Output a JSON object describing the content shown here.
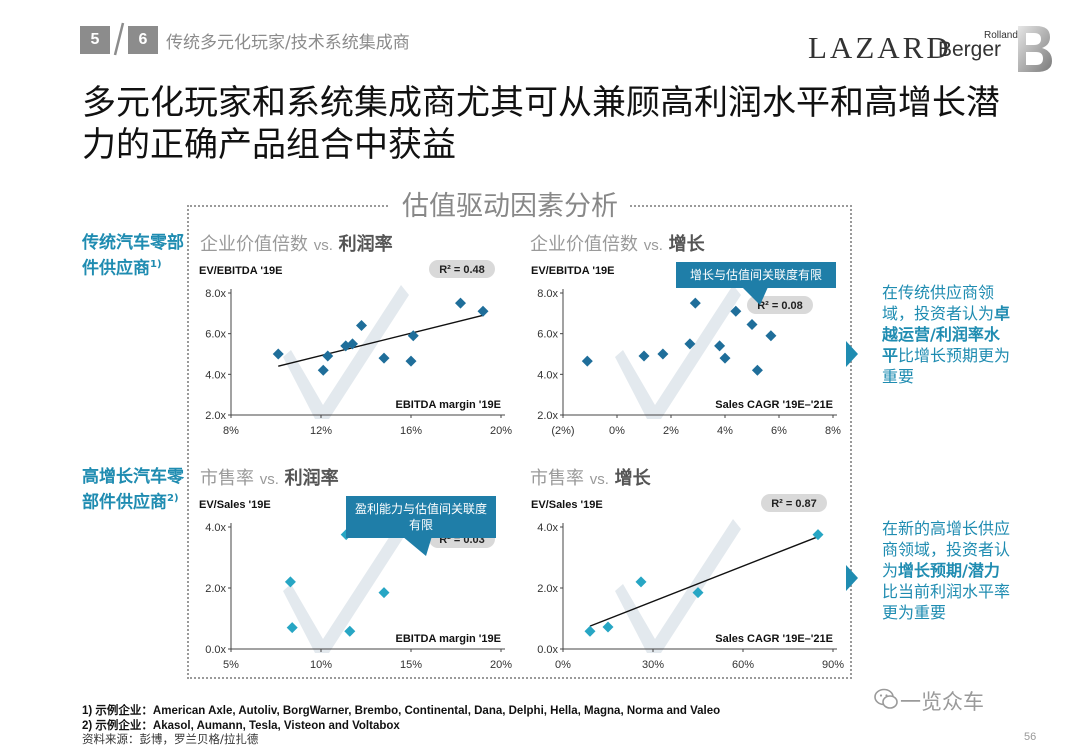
{
  "header": {
    "nav_prev": "5",
    "nav_current": "6",
    "section_title": "传统多元化玩家/技术系统集成商",
    "logo_lazard": "LAZARD",
    "logo_rolland": "Rolland",
    "logo_berger": "Berger"
  },
  "main_title": "多元化玩家和系统集成商尤其可从兼顾高利润水平和高增长潜力的正确产品组合中获益",
  "analysis_title": "估值驱动因素分析",
  "side_labels": {
    "top": "传统汽车零部件供应商",
    "top_sup": "1)",
    "bottom": "高增长汽车零部件供应商",
    "bottom_sup": "2)"
  },
  "panels": {
    "tl": {
      "title_a": "企业价值倍数",
      "vs": "vs.",
      "title_b": "利润率"
    },
    "tr": {
      "title_a": "企业价值倍数",
      "vs": "vs.",
      "title_b": "增长"
    },
    "bl": {
      "title_a": "市售率",
      "vs": "vs.",
      "title_b": "利润率"
    },
    "br": {
      "title_a": "市售率",
      "vs": "vs.",
      "title_b": "增长"
    }
  },
  "callouts": {
    "tr": "增长与估值间关联度有限",
    "bl_line1": "盈利能力与估值间关联度",
    "bl_line2": "有限"
  },
  "right_text": {
    "top_a": "在传统供应商领域，投资者认为",
    "top_b": "卓越运营/利润率水平",
    "top_c": "比增长预期更为重要",
    "bottom_a": "在新的高增长供应商领域，投资者认为",
    "bottom_b": "增长预期/潜力",
    "bottom_c": "比当前利润水平率更为重要"
  },
  "footnotes": {
    "f1": "1) 示例企业：American Axle, Autoliv, BorgWarner, Brembo, Continental, Dana, Delphi, Hella, Magna, Norma and Valeo",
    "f2": "2) 示例企业：Akasol, Aumann, Tesla, Visteon and Voltabox",
    "source": "资料来源：彭博，罗兰贝格/拉扎德"
  },
  "watermark": "一览众车",
  "page_number": "56",
  "colors": {
    "accent": "#1f8cb1",
    "marker": "#1f6e9a",
    "callout": "#1f7ea8",
    "badge": "#d9d9d9"
  },
  "chart_data": [
    {
      "id": "tl",
      "type": "scatter",
      "ylabel": "EV/EBITDA '19E",
      "xlabel": "EBITDA margin '19E",
      "badge": "R² = 0.48",
      "xlim": [
        8,
        20
      ],
      "ylim": [
        2,
        8
      ],
      "xticks": [
        8,
        12,
        16,
        20
      ],
      "xtick_labels": [
        "8%",
        "12%",
        "16%",
        "20%"
      ],
      "yticks": [
        2,
        4,
        6,
        8
      ],
      "ytick_labels": [
        "2.0x",
        "4.0x",
        "6.0x",
        "8.0x"
      ],
      "points": [
        [
          10.1,
          5.0
        ],
        [
          12.1,
          4.2
        ],
        [
          12.3,
          4.9
        ],
        [
          13.1,
          5.4
        ],
        [
          13.4,
          5.5
        ],
        [
          13.8,
          6.4
        ],
        [
          14.8,
          4.8
        ],
        [
          16.0,
          4.65
        ],
        [
          16.1,
          5.9
        ],
        [
          18.2,
          7.5
        ],
        [
          19.2,
          7.1
        ]
      ],
      "trend": [
        [
          10.1,
          4.4
        ],
        [
          19.2,
          6.9
        ]
      ]
    },
    {
      "id": "tr",
      "type": "scatter",
      "ylabel": "EV/EBITDA '19E",
      "xlabel": "Sales CAGR '19E–'21E",
      "badge": "R² = 0.08",
      "xlim": [
        -2,
        8
      ],
      "ylim": [
        2,
        8
      ],
      "xticks": [
        -2,
        0,
        2,
        4,
        6,
        8
      ],
      "xtick_labels": [
        "(2%)",
        "0%",
        "2%",
        "4%",
        "6%",
        "8%"
      ],
      "yticks": [
        2,
        4,
        6,
        8
      ],
      "ytick_labels": [
        "2.0x",
        "4.0x",
        "6.0x",
        "8.0x"
      ],
      "points": [
        [
          -1.1,
          4.65
        ],
        [
          1.0,
          4.9
        ],
        [
          1.7,
          5.0
        ],
        [
          2.7,
          5.5
        ],
        [
          2.9,
          7.5
        ],
        [
          3.8,
          5.4
        ],
        [
          4.0,
          4.8
        ],
        [
          4.4,
          7.1
        ],
        [
          5.0,
          6.45
        ],
        [
          5.2,
          4.2
        ],
        [
          5.7,
          5.9
        ]
      ]
    },
    {
      "id": "bl",
      "type": "scatter",
      "ylabel": "EV/Sales '19E",
      "xlabel": "EBITDA margin '19E",
      "badge": "R² = 0.03",
      "xlim": [
        5,
        20
      ],
      "ylim": [
        0,
        4
      ],
      "xticks": [
        5,
        10,
        15,
        20
      ],
      "xtick_labels": [
        "5%",
        "10%",
        "15%",
        "20%"
      ],
      "yticks": [
        0,
        2,
        4
      ],
      "ytick_labels": [
        "0.0x",
        "2.0x",
        "4.0x"
      ],
      "points": [
        [
          8.3,
          2.2
        ],
        [
          8.4,
          0.7
        ],
        [
          11.4,
          3.75
        ],
        [
          11.6,
          0.58
        ],
        [
          13.5,
          1.85
        ]
      ]
    },
    {
      "id": "br",
      "type": "scatter",
      "ylabel": "EV/Sales '19E",
      "xlabel": "Sales CAGR '19E–'21E",
      "badge": "R² = 0.87",
      "xlim": [
        0,
        90
      ],
      "ylim": [
        0,
        4
      ],
      "xticks": [
        0,
        30,
        60,
        90
      ],
      "xtick_labels": [
        "0%",
        "30%",
        "60%",
        "90%"
      ],
      "yticks": [
        0,
        2,
        4
      ],
      "ytick_labels": [
        "0.0x",
        "2.0x",
        "4.0x"
      ],
      "points": [
        [
          9,
          0.58
        ],
        [
          15,
          0.72
        ],
        [
          26,
          2.2
        ],
        [
          45,
          1.85
        ],
        [
          85,
          3.75
        ]
      ],
      "trend": [
        [
          9,
          0.75
        ],
        [
          86,
          3.72
        ]
      ]
    }
  ]
}
